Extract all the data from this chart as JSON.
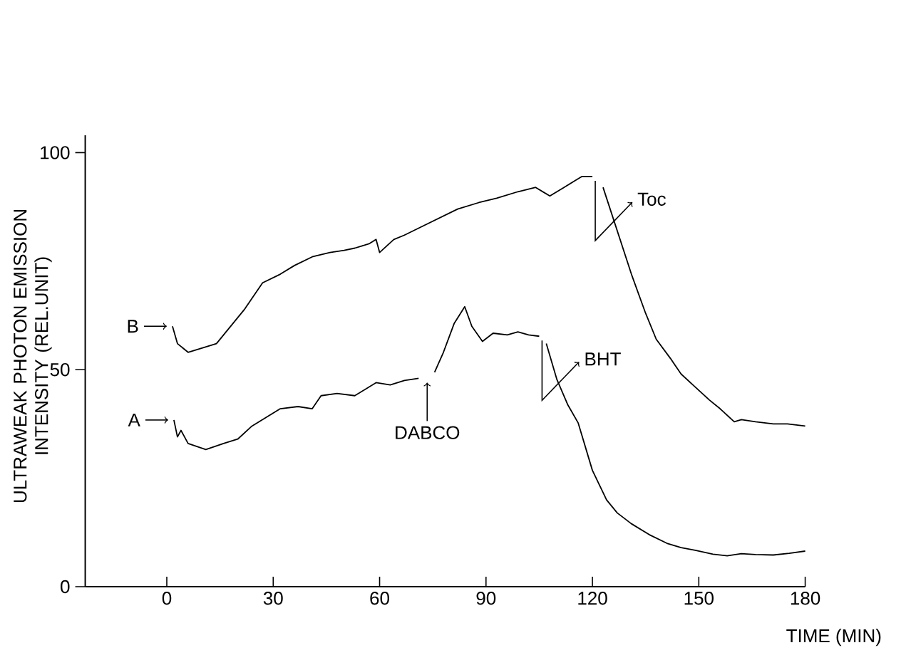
{
  "chart_data": {
    "type": "line",
    "xlabel": "TIME (MIN)",
    "ylabel": "ULTRAWEAK PHOTON EMISSION INTENSITY (REL.UNIT)",
    "xlim": [
      -23,
      180
    ],
    "ylim": [
      0,
      104
    ],
    "xticks": [
      0,
      30,
      60,
      90,
      120,
      150,
      180
    ],
    "yticks": [
      0,
      50,
      100
    ],
    "grid": false,
    "legend": "left",
    "series": [
      {
        "name": "A",
        "color": "#000000",
        "x": [
          2,
          3,
          4,
          6,
          11,
          16,
          20,
          24,
          28,
          32,
          37,
          41,
          43.5,
          48,
          53,
          59,
          63,
          67,
          71,
          73,
          75.5,
          78,
          81,
          84,
          86,
          89,
          92,
          96,
          99,
          102,
          105,
          106,
          107,
          110,
          113,
          116,
          120,
          124,
          127,
          131,
          136,
          141,
          145,
          149,
          154,
          158,
          162,
          166,
          171,
          175.5,
          180
        ],
        "values": [
          38.4,
          34.5,
          36,
          33,
          31.6,
          33,
          34,
          37,
          39,
          41,
          41.5,
          41,
          44,
          44.5,
          44,
          47,
          46.5,
          47.5,
          48,
          null,
          49.4,
          54,
          60.6,
          64.5,
          60,
          56.5,
          58.4,
          58,
          58.7,
          58,
          57.7,
          null,
          56,
          47.7,
          42,
          37.7,
          26.8,
          20,
          17,
          14.5,
          12,
          10,
          9,
          8.4,
          7.5,
          7.1,
          7.6,
          7.4,
          7.3,
          7.7,
          8.2
        ]
      },
      {
        "name": "B",
        "color": "#000000",
        "x": [
          1.6,
          3,
          6,
          10,
          14,
          18,
          22,
          27,
          32,
          36,
          41,
          46,
          50,
          53,
          57,
          59,
          60,
          64,
          67,
          72,
          77,
          82,
          88,
          93,
          99,
          104,
          108,
          112,
          117,
          120,
          121.5,
          123,
          127,
          131,
          135,
          138,
          142,
          145,
          149,
          153,
          156,
          160,
          162,
          166,
          171,
          175,
          180
        ],
        "values": [
          60,
          56,
          54,
          55,
          56,
          60,
          64,
          70,
          72,
          74,
          76,
          77,
          77.5,
          78,
          79,
          80,
          77,
          80,
          81,
          83,
          85,
          87,
          88.5,
          89.5,
          91,
          92,
          90,
          92,
          94.5,
          94.5,
          null,
          92,
          82,
          72,
          63,
          57,
          52.6,
          49,
          46,
          43,
          41,
          38,
          38.5,
          38,
          37.5,
          37.5,
          37
        ]
      }
    ],
    "annotations": [
      {
        "text": "DABCO",
        "x": 71,
        "y": 48
      },
      {
        "text": "BHT",
        "x": 105,
        "y": 57.7
      },
      {
        "text": "Toc",
        "x": 120,
        "y": 94.5
      }
    ]
  }
}
